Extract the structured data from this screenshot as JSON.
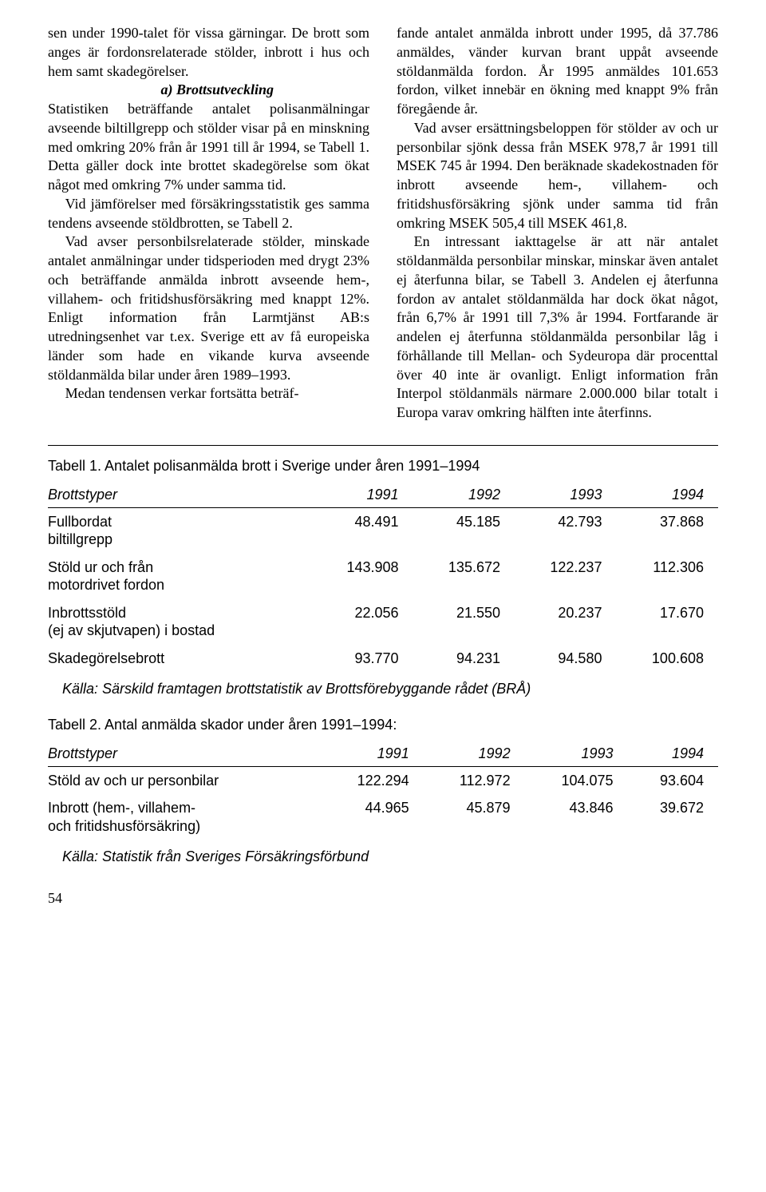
{
  "text": {
    "p1": "sen under 1990-talet för vissa gärningar. De brott som anges är fordonsrelaterade stölder, inbrott i hus och hem samt skadegörelser.",
    "subhead_a": "a) Brottsutveckling",
    "p2": "Statistiken beträffande antalet polisanmälningar avseende biltillgrepp och stölder visar på en minskning med omkring 20% från år 1991 till år 1994, se Tabell 1. Detta gäller dock inte brottet skadegörelse som ökat något med omkring 7% under samma tid.",
    "p3": "Vid jämförelser med försäkringsstatistik ges samma tendens avseende stöldbrotten, se Tabell 2.",
    "p4": "Vad avser personbilsrelaterade stölder, minskade antalet anmälningar under tidsperioden med drygt 23% och beträffande anmälda inbrott avseende hem-, villahem- och fritidshusförsäkring med knappt 12%. Enligt information från Larmtjänst AB:s utredningsenhet var t.ex. Sverige ett av få europeiska länder som hade en vikande kurva avseende stöldanmälda bilar under åren 1989–1993.",
    "p5a": "Medan tendensen verkar fortsätta beträf",
    "p5b": "fande antalet anmälda inbrott under 1995, då 37.786 anmäldes, vänder kurvan brant uppåt avseende stöldanmälda fordon. År 1995 anmäldes 101.653 fordon, vilket innebär en ökning med knappt 9% från föregående år.",
    "p6": "Vad avser ersättningsbeloppen för stölder av och ur personbilar sjönk dessa från MSEK 978,7 år 1991 till MSEK 745 år 1994. Den beräknade skadekostnaden för inbrott avseende hem-, villahem- och fritidshusförsäkring sjönk under samma tid från omkring MSEK 505,4 till MSEK 461,8.",
    "p7": "En intressant iakttagelse är att när antalet stöldanmälda personbilar minskar, minskar även antalet ej återfunna bilar, se Tabell 3. Andelen ej återfunna fordon av antalet stöldanmälda har dock ökat något, från 6,7% år 1991 till 7,3% år 1994. Fortfarande är andelen ej återfunna stöldanmälda personbilar låg i förhållande till Mellan- och Sydeuropa där procenttal över 40 inte är ovanligt. Enligt information från Interpol stöldanmäls närmare 2.000.000 bilar totalt i Europa varav omkring hälften inte återfinns."
  },
  "table1": {
    "title": "Tabell 1. Antalet polisanmälda brott i Sverige under åren 1991–1994",
    "headers": [
      "Brottstyper",
      "1991",
      "1992",
      "1993",
      "1994"
    ],
    "rows": [
      {
        "label": "Fullbordat\nbiltillgrepp",
        "vals": [
          "48.491",
          "45.185",
          "42.793",
          "37.868"
        ]
      },
      {
        "label": "Stöld ur och från\nmotordrivet fordon",
        "vals": [
          "143.908",
          "135.672",
          "122.237",
          "112.306"
        ]
      },
      {
        "label": "Inbrottsstöld\n(ej av skjutvapen) i bostad",
        "vals": [
          "22.056",
          "21.550",
          "20.237",
          "17.670"
        ]
      },
      {
        "label": "Skadegörelsebrott",
        "vals": [
          "93.770",
          "94.231",
          "94.580",
          "100.608"
        ]
      }
    ],
    "source": "Källa: Särskild framtagen brottstatistik av Brottsförebyggande rådet (BRÅ)"
  },
  "table2": {
    "title": "Tabell 2. Antal anmälda skador under åren 1991–1994:",
    "headers": [
      "Brottstyper",
      "1991",
      "1992",
      "1993",
      "1994"
    ],
    "rows": [
      {
        "label": "Stöld av och ur personbilar",
        "vals": [
          "122.294",
          "112.972",
          "104.075",
          "93.604"
        ]
      },
      {
        "label": "Inbrott (hem-, villahem-\noch fritidshusförsäkring)",
        "vals": [
          "44.965",
          "45.879",
          "43.846",
          "39.672"
        ]
      }
    ],
    "source": "Källa: Statistik från Sveriges Försäkringsförbund"
  },
  "page_number": "54"
}
